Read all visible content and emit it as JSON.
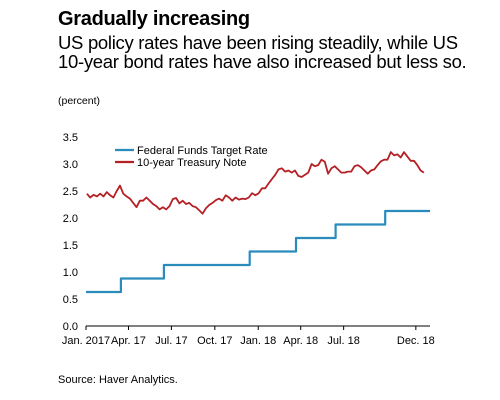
{
  "header": {
    "title": "Gradually increasing",
    "subtitle": "US policy rates have been rising steadily, while US 10-year bond rates have also increased but less so.",
    "unit": "(percent)"
  },
  "footer": {
    "source": "Source: Haver Analytics."
  },
  "colors": {
    "fed_funds": "#2a8bbd",
    "treasury": "#b52025"
  },
  "chart_data": {
    "type": "line",
    "title": "Gradually increasing",
    "subtitle": "US policy rates have been rising steadily, while US 10-year bond rates have also increased but less so.",
    "ylabel": "(percent)",
    "xlabel": "",
    "ylim": [
      0,
      3.5
    ],
    "xlim": [
      "2017-01-01",
      "2018-12-31"
    ],
    "yticks": [
      "0.0",
      "0.5",
      "1.0",
      "1.5",
      "2.0",
      "2.5",
      "3.0",
      "3.5"
    ],
    "xticks": [
      {
        "date": "2017-01-01",
        "label": "Jan. 2017"
      },
      {
        "date": "2017-04-01",
        "label": "Apr. 17"
      },
      {
        "date": "2017-07-01",
        "label": "Jul. 17"
      },
      {
        "date": "2017-10-01",
        "label": "Oct. 17"
      },
      {
        "date": "2018-01-01",
        "label": "Jan. 18"
      },
      {
        "date": "2018-04-01",
        "label": "Apr. 18"
      },
      {
        "date": "2018-07-01",
        "label": "Jul. 18"
      },
      {
        "date": "2018-12-01",
        "label": "Dec. 18"
      }
    ],
    "grid": false,
    "legend": "top-left",
    "series": [
      {
        "name": "Federal Funds Target Rate",
        "step": true,
        "points": [
          [
            "2017-01-01",
            0.63
          ],
          [
            "2017-03-16",
            0.88
          ],
          [
            "2017-06-15",
            1.13
          ],
          [
            "2017-12-14",
            1.38
          ],
          [
            "2018-03-22",
            1.63
          ],
          [
            "2018-06-14",
            1.88
          ],
          [
            "2018-09-27",
            2.13
          ],
          [
            "2018-12-31",
            2.13
          ]
        ]
      },
      {
        "name": "10-year Treasury Note",
        "step": false,
        "points": [
          [
            "2017-01-03",
            2.45
          ],
          [
            "2017-01-10",
            2.38
          ],
          [
            "2017-01-17",
            2.43
          ],
          [
            "2017-01-24",
            2.4
          ],
          [
            "2017-01-31",
            2.45
          ],
          [
            "2017-02-07",
            2.4
          ],
          [
            "2017-02-14",
            2.48
          ],
          [
            "2017-02-21",
            2.42
          ],
          [
            "2017-02-28",
            2.38
          ],
          [
            "2017-03-07",
            2.5
          ],
          [
            "2017-03-14",
            2.6
          ],
          [
            "2017-03-21",
            2.45
          ],
          [
            "2017-03-28",
            2.4
          ],
          [
            "2017-04-04",
            2.36
          ],
          [
            "2017-04-11",
            2.28
          ],
          [
            "2017-04-18",
            2.2
          ],
          [
            "2017-04-25",
            2.32
          ],
          [
            "2017-05-02",
            2.32
          ],
          [
            "2017-05-09",
            2.38
          ],
          [
            "2017-05-16",
            2.32
          ],
          [
            "2017-05-23",
            2.26
          ],
          [
            "2017-05-30",
            2.22
          ],
          [
            "2017-06-06",
            2.16
          ],
          [
            "2017-06-13",
            2.2
          ],
          [
            "2017-06-20",
            2.16
          ],
          [
            "2017-06-27",
            2.22
          ],
          [
            "2017-07-04",
            2.35
          ],
          [
            "2017-07-11",
            2.37
          ],
          [
            "2017-07-18",
            2.27
          ],
          [
            "2017-07-25",
            2.32
          ],
          [
            "2017-08-01",
            2.26
          ],
          [
            "2017-08-08",
            2.28
          ],
          [
            "2017-08-15",
            2.22
          ],
          [
            "2017-08-22",
            2.2
          ],
          [
            "2017-08-29",
            2.14
          ],
          [
            "2017-09-05",
            2.08
          ],
          [
            "2017-09-12",
            2.18
          ],
          [
            "2017-09-19",
            2.24
          ],
          [
            "2017-09-26",
            2.28
          ],
          [
            "2017-10-03",
            2.33
          ],
          [
            "2017-10-10",
            2.36
          ],
          [
            "2017-10-17",
            2.32
          ],
          [
            "2017-10-24",
            2.42
          ],
          [
            "2017-10-31",
            2.38
          ],
          [
            "2017-11-07",
            2.32
          ],
          [
            "2017-11-14",
            2.38
          ],
          [
            "2017-11-21",
            2.34
          ],
          [
            "2017-11-28",
            2.36
          ],
          [
            "2017-12-05",
            2.35
          ],
          [
            "2017-12-12",
            2.38
          ],
          [
            "2017-12-19",
            2.46
          ],
          [
            "2017-12-26",
            2.42
          ],
          [
            "2018-01-02",
            2.46
          ],
          [
            "2018-01-09",
            2.55
          ],
          [
            "2018-01-16",
            2.55
          ],
          [
            "2018-01-23",
            2.64
          ],
          [
            "2018-01-30",
            2.72
          ],
          [
            "2018-02-06",
            2.8
          ],
          [
            "2018-02-13",
            2.9
          ],
          [
            "2018-02-20",
            2.92
          ],
          [
            "2018-02-27",
            2.86
          ],
          [
            "2018-03-06",
            2.88
          ],
          [
            "2018-03-13",
            2.84
          ],
          [
            "2018-03-20",
            2.88
          ],
          [
            "2018-03-27",
            2.78
          ],
          [
            "2018-04-03",
            2.76
          ],
          [
            "2018-04-10",
            2.8
          ],
          [
            "2018-04-17",
            2.84
          ],
          [
            "2018-04-24",
            3.0
          ],
          [
            "2018-05-01",
            2.96
          ],
          [
            "2018-05-08",
            2.98
          ],
          [
            "2018-05-15",
            3.08
          ],
          [
            "2018-05-22",
            3.04
          ],
          [
            "2018-05-29",
            2.82
          ],
          [
            "2018-06-05",
            2.92
          ],
          [
            "2018-06-12",
            2.96
          ],
          [
            "2018-06-19",
            2.9
          ],
          [
            "2018-06-26",
            2.84
          ],
          [
            "2018-07-03",
            2.84
          ],
          [
            "2018-07-10",
            2.86
          ],
          [
            "2018-07-17",
            2.86
          ],
          [
            "2018-07-24",
            2.96
          ],
          [
            "2018-07-31",
            2.98
          ],
          [
            "2018-08-07",
            2.94
          ],
          [
            "2018-08-14",
            2.88
          ],
          [
            "2018-08-21",
            2.82
          ],
          [
            "2018-08-28",
            2.88
          ],
          [
            "2018-09-04",
            2.9
          ],
          [
            "2018-09-11",
            2.98
          ],
          [
            "2018-09-18",
            3.05
          ],
          [
            "2018-09-25",
            3.08
          ],
          [
            "2018-10-02",
            3.08
          ],
          [
            "2018-10-09",
            3.22
          ],
          [
            "2018-10-16",
            3.16
          ],
          [
            "2018-10-23",
            3.18
          ],
          [
            "2018-10-30",
            3.12
          ],
          [
            "2018-11-06",
            3.22
          ],
          [
            "2018-11-13",
            3.14
          ],
          [
            "2018-11-20",
            3.06
          ],
          [
            "2018-11-27",
            3.06
          ],
          [
            "2018-12-04",
            2.98
          ],
          [
            "2018-12-11",
            2.88
          ],
          [
            "2018-12-18",
            2.84
          ]
        ]
      }
    ]
  }
}
